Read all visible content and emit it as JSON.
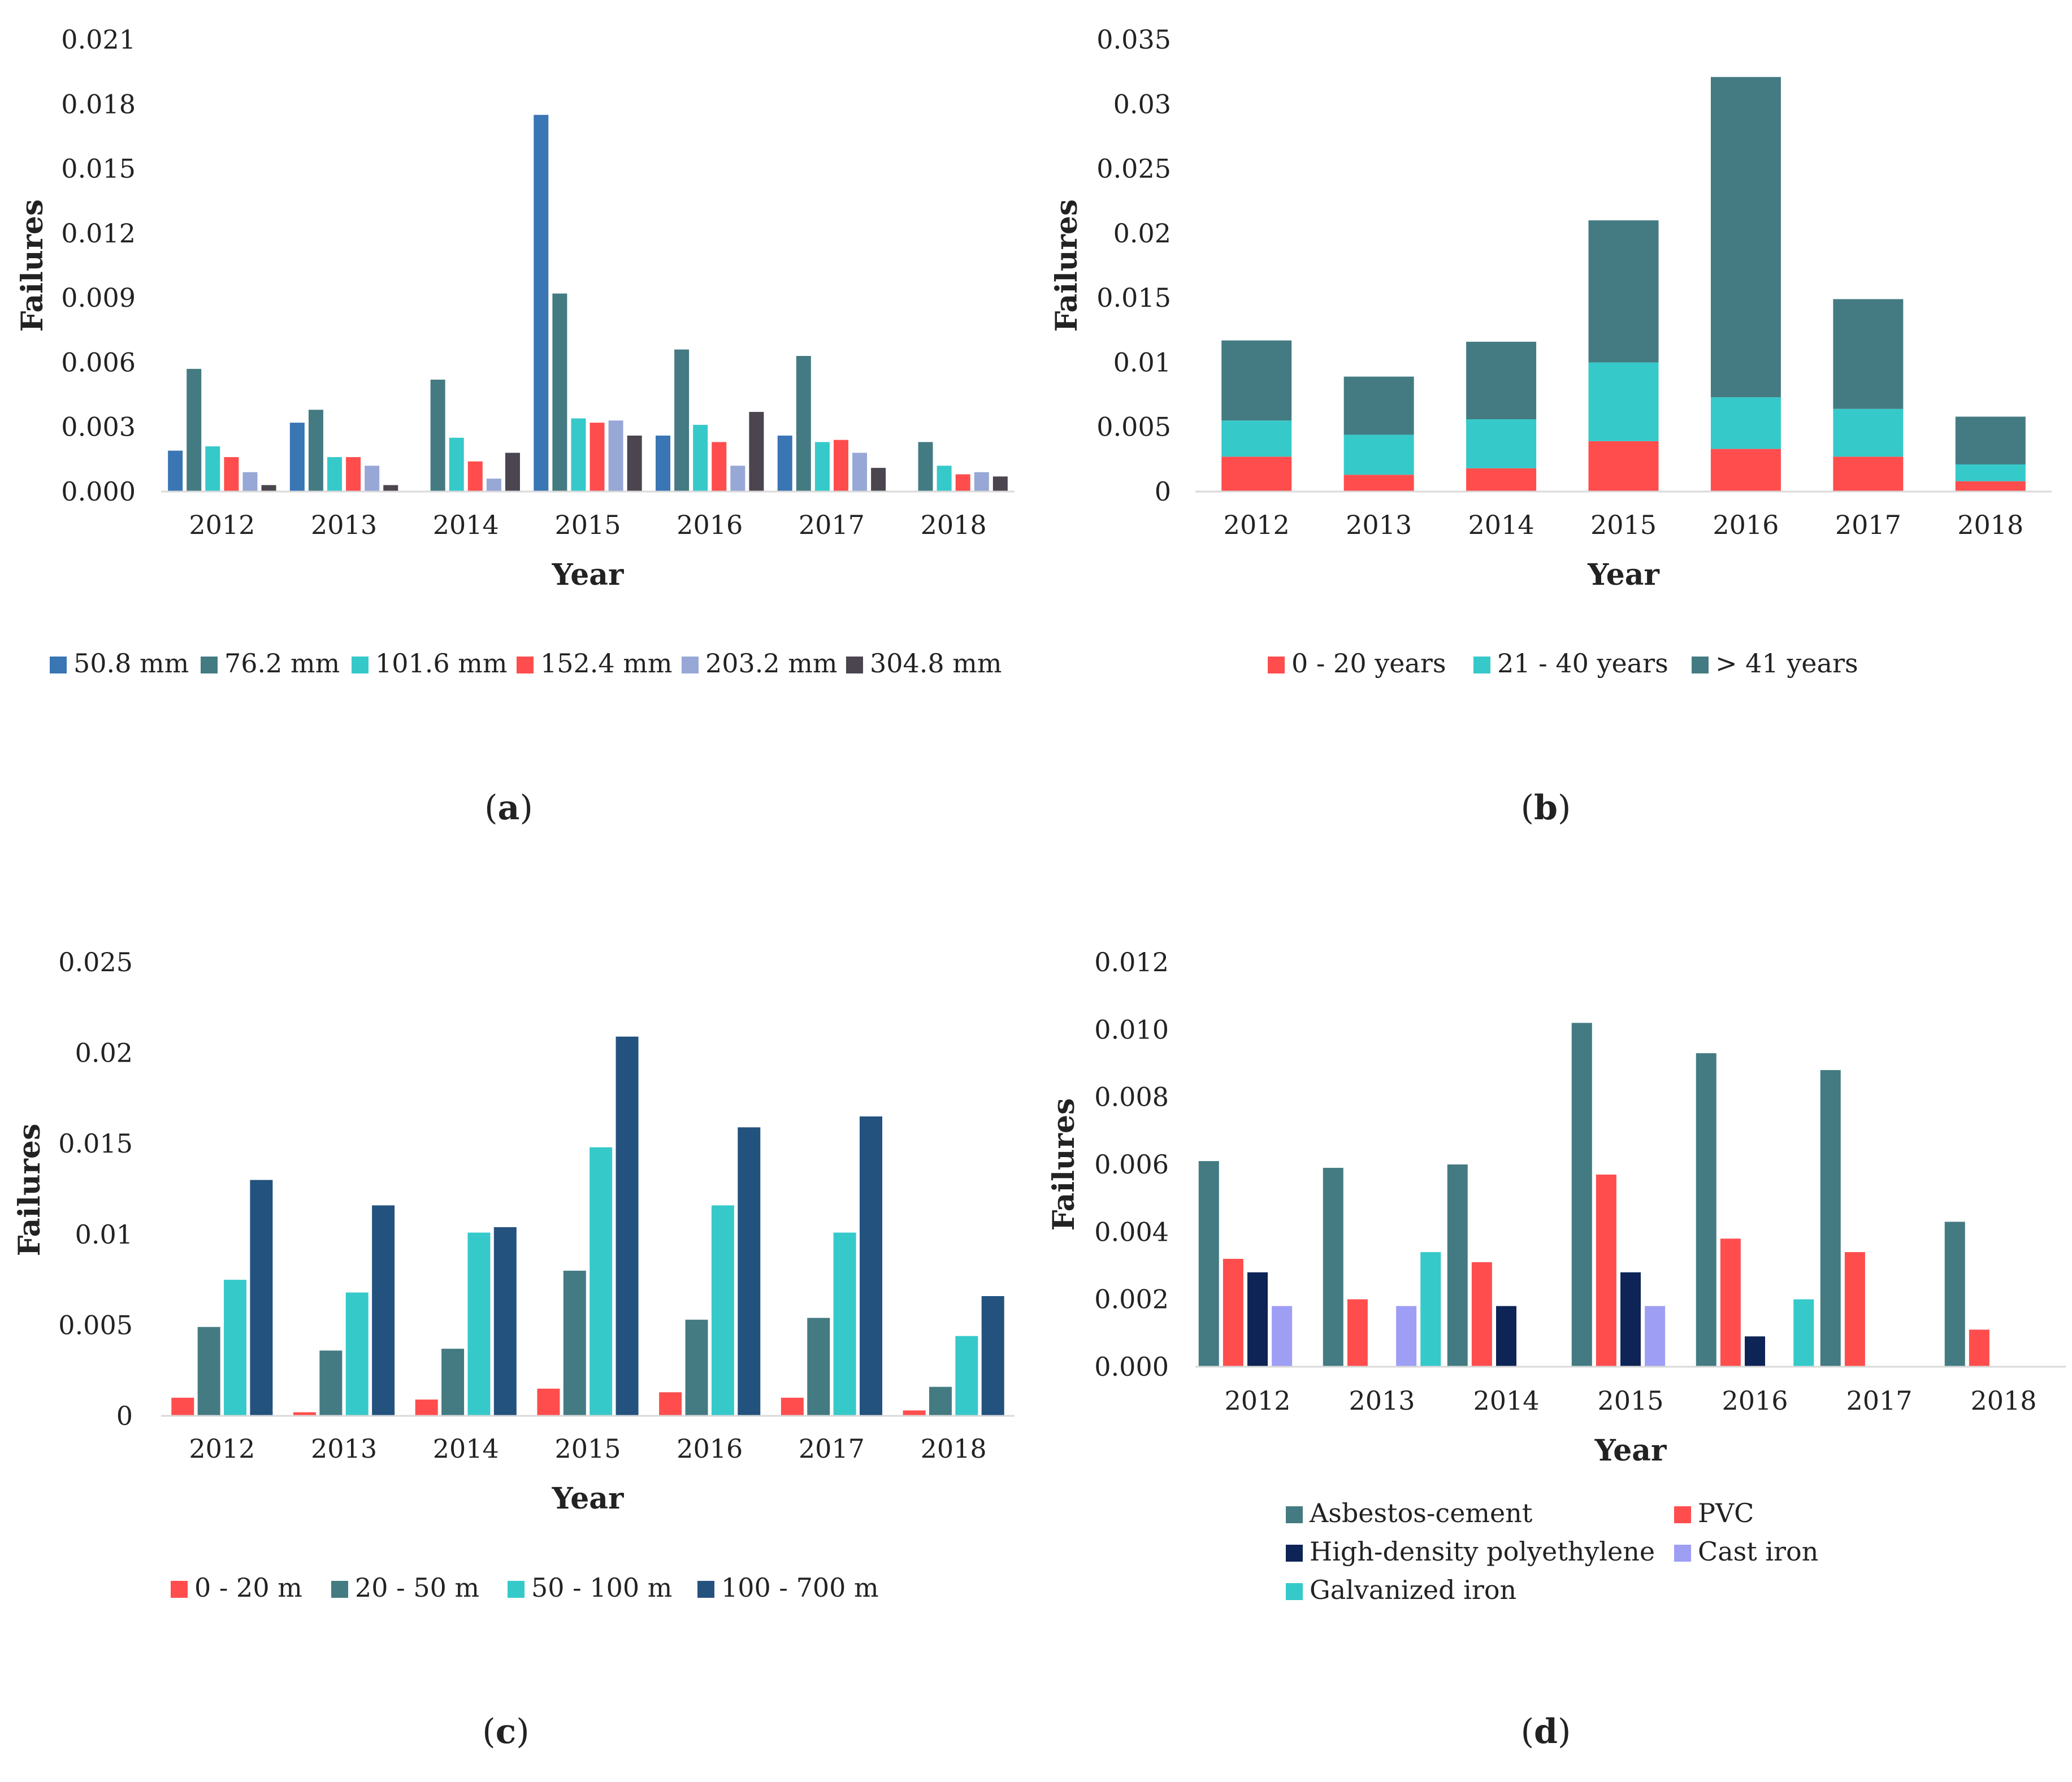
{
  "chart_data": [
    {
      "panel": "(a)",
      "type": "bar",
      "xlabel": "Year",
      "ylabel": "Failures",
      "ylim": [
        0,
        0.021
      ],
      "yticks": [
        "0.000",
        "0.003",
        "0.006",
        "0.009",
        "0.012",
        "0.015",
        "0.018",
        "0.021"
      ],
      "categories": [
        "2012",
        "2013",
        "2014",
        "2015",
        "2016",
        "2017",
        "2018"
      ],
      "series": [
        {
          "name": "50.8 mm",
          "color": "#3A75B4",
          "values": [
            0.0019,
            0.0032,
            0,
            0.0175,
            0.0026,
            0.0026,
            0
          ]
        },
        {
          "name": "76.2 mm",
          "color": "#447B82",
          "values": [
            0.0057,
            0.0038,
            0.0052,
            0.0092,
            0.0066,
            0.0063,
            0.0023
          ]
        },
        {
          "name": "101.6 mm",
          "color": "#36C9CA",
          "values": [
            0.0021,
            0.0016,
            0.0025,
            0.0034,
            0.0031,
            0.0023,
            0.0012
          ]
        },
        {
          "name": "152.4 mm",
          "color": "#FF4D4D",
          "values": [
            0.0016,
            0.0016,
            0.0014,
            0.0032,
            0.0023,
            0.0024,
            0.0008
          ]
        },
        {
          "name": "203.2 mm",
          "color": "#97A7D6",
          "values": [
            0.0009,
            0.0012,
            0.0006,
            0.0033,
            0.0012,
            0.0018,
            0.0009
          ]
        },
        {
          "name": "304.8 mm",
          "color": "#4A454E",
          "values": [
            0.0003,
            0.0003,
            0.0018,
            0.0026,
            0.0037,
            0.0011,
            0.0007
          ]
        }
      ]
    },
    {
      "panel": "(b)",
      "type": "stacked-bar",
      "xlabel": "Year",
      "ylabel": "Failures",
      "ylim": [
        0,
        0.035
      ],
      "yticks": [
        "0",
        "0.005",
        "0.01",
        "0.015",
        "0.02",
        "0.025",
        "0.03",
        "0.035"
      ],
      "categories": [
        "2012",
        "2013",
        "2014",
        "2015",
        "2016",
        "2017",
        "2018"
      ],
      "series": [
        {
          "name": "0 - 20 years",
          "color": "#FF4D4D",
          "values": [
            0.0027,
            0.0013,
            0.0018,
            0.0039,
            0.0033,
            0.0027,
            0.0008
          ]
        },
        {
          "name": "21 - 40 years",
          "color": "#36C9CA",
          "values": [
            0.0028,
            0.0031,
            0.0038,
            0.0061,
            0.004,
            0.0037,
            0.0013
          ]
        },
        {
          "name": "> 41 years",
          "color": "#447B82",
          "values": [
            0.0062,
            0.0045,
            0.006,
            0.011,
            0.0248,
            0.0085,
            0.0037
          ]
        }
      ]
    },
    {
      "panel": "(c)",
      "type": "bar",
      "xlabel": "Year",
      "ylabel": "Failures",
      "ylim": [
        0,
        0.025
      ],
      "yticks": [
        "0",
        "0.005",
        "0.01",
        "0.015",
        "0.02",
        "0.025"
      ],
      "categories": [
        "2012",
        "2013",
        "2014",
        "2015",
        "2016",
        "2017",
        "2018"
      ],
      "series": [
        {
          "name": "0 - 20 m",
          "color": "#FF4D4D",
          "values": [
            0.001,
            0.0002,
            0.0009,
            0.0015,
            0.0013,
            0.001,
            0.0003
          ]
        },
        {
          "name": "20 - 50 m",
          "color": "#447B82",
          "values": [
            0.0049,
            0.0036,
            0.0037,
            0.008,
            0.0053,
            0.0054,
            0.0016
          ]
        },
        {
          "name": "50 - 100 m",
          "color": "#36C9CA",
          "values": [
            0.0075,
            0.0068,
            0.0101,
            0.0148,
            0.0116,
            0.0101,
            0.0044
          ]
        },
        {
          "name": "100 - 700 m",
          "color": "#24527E",
          "values": [
            0.013,
            0.0116,
            0.0104,
            0.0209,
            0.0159,
            0.0165,
            0.0066
          ]
        }
      ]
    },
    {
      "panel": "(d)",
      "type": "bar",
      "xlabel": "Year",
      "ylabel": "Failures",
      "ylim": [
        0,
        0.012
      ],
      "yticks": [
        "0.000",
        "0.002",
        "0.004",
        "0.006",
        "0.008",
        "0.010",
        "0.012"
      ],
      "categories": [
        "2012",
        "2013",
        "2014",
        "2015",
        "2016",
        "2017",
        "2018"
      ],
      "series": [
        {
          "name": "Asbestos-cement",
          "color": "#447B82",
          "values": [
            0.0061,
            0.0059,
            0.006,
            0.0102,
            0.0093,
            0.0088,
            0.0043
          ]
        },
        {
          "name": "PVC",
          "color": "#FF4D4D",
          "values": [
            0.0032,
            0.002,
            0.0031,
            0.0057,
            0.0038,
            0.0034,
            0.0011
          ]
        },
        {
          "name": "High-density polyethylene",
          "color": "#0E2456",
          "values": [
            0.0028,
            0,
            0.0018,
            0.0028,
            0.0009,
            0,
            0
          ]
        },
        {
          "name": "Cast iron",
          "color": "#9E9EF5",
          "values": [
            0.0018,
            0.0018,
            0,
            0.0018,
            0,
            0,
            0
          ]
        },
        {
          "name": "Galvanized iron",
          "color": "#36C9CA",
          "values": [
            0,
            0.0034,
            0,
            0,
            0.002,
            0,
            0
          ]
        }
      ]
    }
  ]
}
